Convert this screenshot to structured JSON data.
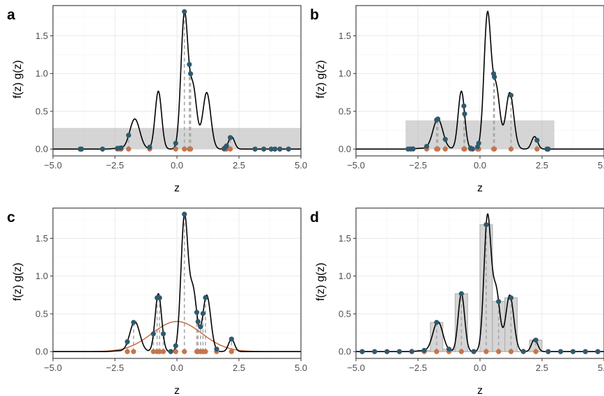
{
  "colors": {
    "density": "#000000",
    "point_f": "#2e5a70",
    "point_g": "#c8744a",
    "proposal": "#c8744a",
    "fill": "#b3b3b3",
    "dash": "#a6a6a6",
    "grid_major": "#ebebeb",
    "grid_minor": "#f5f5f5",
    "border": "#333333"
  },
  "density_components": [
    {
      "mean": -1.7,
      "sd": 0.2,
      "weight": 0.2
    },
    {
      "mean": -0.75,
      "sd": 0.13,
      "weight": 0.25
    },
    {
      "mean": 0.3,
      "sd": 0.14,
      "weight": 0.62
    },
    {
      "mean": 0.65,
      "sd": 0.15,
      "weight": 0.3
    },
    {
      "mean": 1.2,
      "sd": 0.16,
      "weight": 0.3
    },
    {
      "mean": 2.2,
      "sd": 0.12,
      "weight": 0.05
    },
    {
      "mean": -2.4,
      "sd": 0.2,
      "weight": 0.005
    }
  ],
  "chart_data": [
    {
      "type": "line",
      "panel": "a",
      "xlabel": "z",
      "ylabel": "f(z) g(z)",
      "xlim": [
        -5,
        5
      ],
      "ylim": [
        -0.09,
        1.9
      ],
      "xticks": [
        -5,
        -2.5,
        0,
        2.5,
        5
      ],
      "xtick_labels": [
        "−5.0",
        "−2.5",
        "0.0",
        "2.5",
        "5.0"
      ],
      "yticks": [
        0,
        0.5,
        1,
        1.5
      ],
      "ytick_labels": [
        "0.0",
        "0.5",
        "1.0",
        "1.5"
      ],
      "proposal": "uniform",
      "rect": [
        -5,
        5,
        0.28
      ],
      "samples": [
        -3.9,
        -3.85,
        -3.0,
        -2.4,
        -2.3,
        -2.25,
        -1.95,
        -1.1,
        -0.05,
        0.3,
        0.5,
        0.55,
        1.9,
        1.95,
        2.0,
        2.15,
        3.15,
        3.5,
        3.8,
        3.95,
        4.15,
        4.5
      ]
    },
    {
      "type": "line",
      "panel": "b",
      "xlabel": "z",
      "ylabel": "f(z) g(z)",
      "xlim": [
        -5,
        5
      ],
      "ylim": [
        -0.09,
        1.9
      ],
      "xticks": [
        -5,
        -2.5,
        0,
        2.5,
        5
      ],
      "xtick_labels": [
        "−5.0",
        "−2.5",
        "0.0",
        "2.5",
        "5.0"
      ],
      "yticks": [
        0,
        0.5,
        1,
        1.5
      ],
      "ytick_labels": [
        "0.0",
        "0.5",
        "1.0",
        "1.5"
      ],
      "proposal": "uniform",
      "rect": [
        -3,
        3,
        0.38
      ],
      "samples": [
        -2.9,
        -2.8,
        -2.7,
        -2.15,
        -1.75,
        -1.7,
        -1.4,
        -0.65,
        -0.62,
        -0.38,
        -0.3,
        -0.1,
        -0.05,
        0.55,
        0.58,
        1.25,
        2.3,
        2.7,
        2.75
      ]
    },
    {
      "type": "line",
      "panel": "c",
      "xlabel": "z",
      "ylabel": "f(z) g(z)",
      "xlim": [
        -5,
        5
      ],
      "ylim": [
        -0.09,
        1.9
      ],
      "xticks": [
        -5,
        -2.5,
        0,
        2.5,
        5
      ],
      "xtick_labels": [
        "−5.0",
        "−2.5",
        "0.0",
        "2.5",
        "5.0"
      ],
      "yticks": [
        0,
        0.5,
        1,
        1.5
      ],
      "ytick_labels": [
        "0.0",
        "0.5",
        "1.0",
        "1.5"
      ],
      "proposal": "normal",
      "normal": {
        "mean": 0,
        "sd": 1
      },
      "samples": [
        -2.0,
        -1.75,
        -0.95,
        -0.8,
        -0.7,
        -0.55,
        -0.25,
        -0.05,
        0.3,
        0.8,
        0.85,
        0.95,
        1.05,
        1.15,
        1.6,
        2.2
      ]
    },
    {
      "type": "line",
      "panel": "d",
      "xlabel": "z",
      "ylabel": "f(z) g(z)",
      "xlim": [
        -5,
        5
      ],
      "ylim": [
        -0.09,
        1.9
      ],
      "xticks": [
        -5,
        -2.5,
        0,
        2.5,
        5
      ],
      "xtick_labels": [
        "−5.0",
        "−2.5",
        "0.0",
        "2.5",
        "5.0"
      ],
      "yticks": [
        0,
        0.5,
        1,
        1.5
      ],
      "ytick_labels": [
        "0.0",
        "0.5",
        "1.0",
        "1.5"
      ],
      "proposal": "grid",
      "bin_width": 0.5,
      "samples": [
        -4.75,
        -4.25,
        -3.75,
        -3.25,
        -2.75,
        -2.25,
        -1.75,
        -1.25,
        -0.75,
        -0.25,
        0.25,
        0.75,
        1.25,
        1.75,
        2.25,
        2.75,
        3.25,
        3.75,
        4.25,
        4.75
      ]
    }
  ]
}
